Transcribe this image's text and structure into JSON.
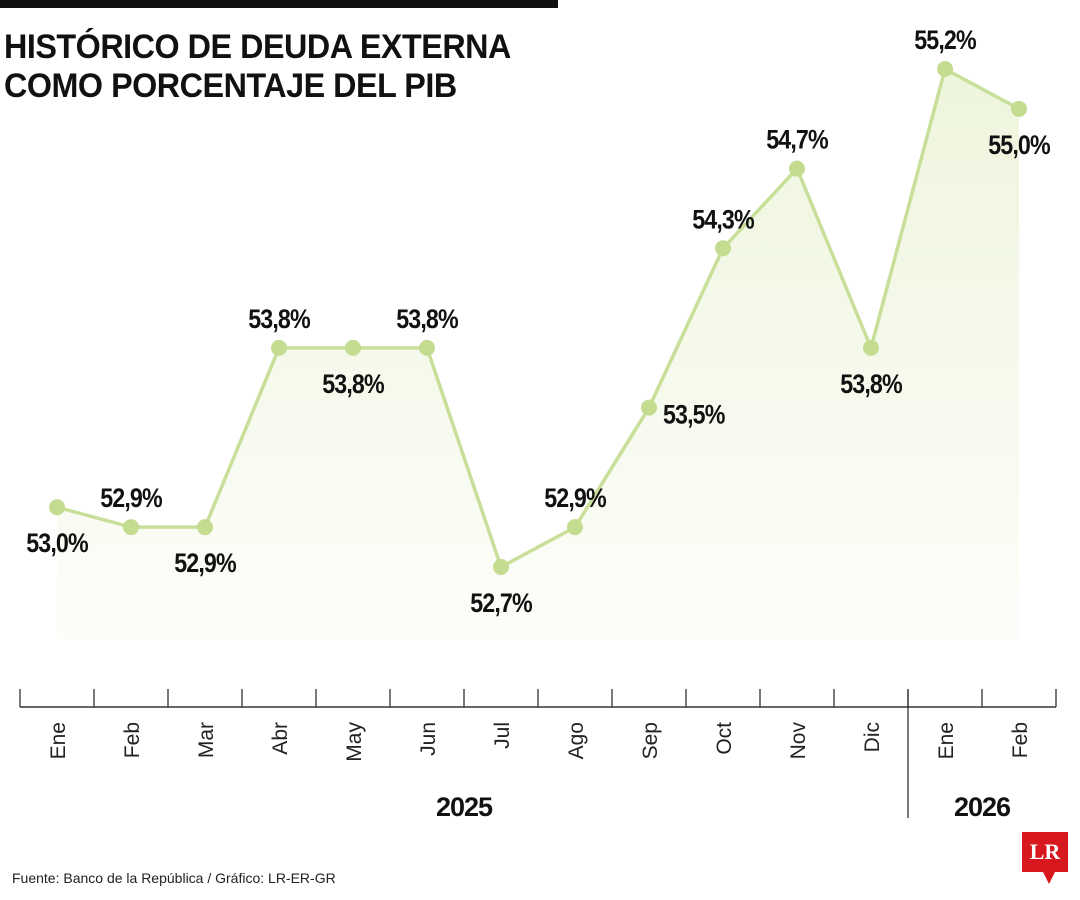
{
  "header": {
    "title_line1": "HISTÓRICO DE DEUDA EXTERNA",
    "title_line2": "COMO PORCENTAJE DEL PIB"
  },
  "footer": {
    "source": "Fuente: Banco de la República / Gráfico: LR-ER-GR",
    "logo_text": "LR"
  },
  "colors": {
    "line": "#c8df9a",
    "marker": "#c3dc8f",
    "fill": "#eef5dc",
    "axis": "#333333",
    "logo": "#d7191f"
  },
  "chart_data": {
    "type": "area",
    "title": "HISTÓRICO DE DEUDA EXTERNA COMO PORCENTAJE DEL PIB",
    "categories": [
      "Ene",
      "Feb",
      "Mar",
      "Abr",
      "May",
      "Jun",
      "Jul",
      "Ago",
      "Sep",
      "Oct",
      "Nov",
      "Dic",
      "Ene",
      "Feb"
    ],
    "year_groups": [
      {
        "label": "2025",
        "count": 12
      },
      {
        "label": "2026",
        "count": 2
      }
    ],
    "values": [
      53.0,
      52.9,
      52.9,
      53.8,
      53.8,
      53.8,
      52.7,
      52.9,
      53.5,
      54.3,
      54.7,
      53.8,
      55.2,
      55.0
    ],
    "labels": [
      "53,0%",
      "52,9%",
      "52,9%",
      "53,8%",
      "53,8%",
      "53,8%",
      "52,7%",
      "52,9%",
      "53,5%",
      "54,3%",
      "54,7%",
      "53,8%",
      "55,2%",
      "55,0%"
    ],
    "label_positions": [
      "below",
      "above",
      "below",
      "above",
      "below",
      "above",
      "below",
      "above",
      "right",
      "above",
      "above",
      "below",
      "above",
      "below"
    ],
    "ylim": [
      52.7,
      55.2
    ],
    "grid": false,
    "legend": "none"
  }
}
